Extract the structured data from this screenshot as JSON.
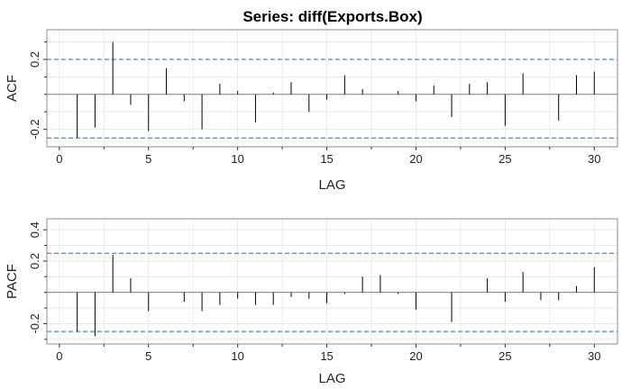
{
  "title": "Series:  diff(Exports.Box)",
  "colors": {
    "panel_border": "#8c8c8c",
    "grid": "#e6e6e6",
    "zero_line": "#7f7f7f",
    "bar": "#000000",
    "ci_line": "#1f6fae"
  },
  "chart_data": [
    {
      "type": "bar",
      "name": "acf",
      "xlabel": "LAG",
      "ylabel": "ACF",
      "xlim": [
        -0.7,
        31.3
      ],
      "ylim": [
        -0.3,
        0.37
      ],
      "xticks": [
        0,
        5,
        10,
        15,
        20,
        25,
        30
      ],
      "xtick_labels": [
        "0",
        "5",
        "10",
        "15",
        "20",
        "25",
        "30"
      ],
      "yticks": [
        -0.2,
        0.2
      ],
      "ytick_labels": [
        "-0.2",
        "0.2"
      ],
      "grid": true,
      "ci": [
        -0.25,
        0.2
      ],
      "x": [
        1,
        2,
        3,
        4,
        5,
        6,
        7,
        8,
        9,
        10,
        11,
        12,
        13,
        14,
        15,
        16,
        17,
        18,
        19,
        20,
        21,
        22,
        23,
        24,
        25,
        26,
        27,
        28,
        29,
        30
      ],
      "values": [
        -0.25,
        -0.19,
        0.3,
        -0.06,
        -0.21,
        0.15,
        -0.04,
        -0.2,
        0.06,
        0.02,
        -0.16,
        0.01,
        0.07,
        -0.1,
        -0.03,
        0.11,
        0.03,
        0.0,
        0.02,
        -0.04,
        0.05,
        -0.13,
        0.06,
        0.07,
        -0.18,
        0.12,
        0.0,
        -0.15,
        0.11,
        0.13
      ]
    },
    {
      "type": "bar",
      "name": "pacf",
      "xlabel": "LAG",
      "ylabel": "PACF",
      "xlim": [
        -0.7,
        31.3
      ],
      "ylim": [
        -0.33,
        0.47
      ],
      "xticks": [
        0,
        5,
        10,
        15,
        20,
        25,
        30
      ],
      "xtick_labels": [
        "0",
        "5",
        "10",
        "15",
        "20",
        "25",
        "30"
      ],
      "yticks": [
        -0.2,
        0.2,
        0.4
      ],
      "ytick_labels": [
        "-0.2",
        "0.2",
        "0.4"
      ],
      "grid": true,
      "ci": [
        -0.25,
        0.25
      ],
      "x": [
        1,
        2,
        3,
        4,
        5,
        6,
        7,
        8,
        9,
        10,
        11,
        12,
        13,
        14,
        15,
        16,
        17,
        18,
        19,
        20,
        21,
        22,
        23,
        24,
        25,
        26,
        27,
        28,
        29,
        30
      ],
      "values": [
        -0.25,
        -0.28,
        0.24,
        0.09,
        -0.12,
        0.0,
        -0.06,
        -0.12,
        -0.08,
        -0.04,
        -0.08,
        -0.08,
        -0.03,
        -0.04,
        -0.07,
        -0.01,
        0.1,
        0.11,
        -0.01,
        -0.11,
        0.0,
        -0.19,
        0.0,
        0.09,
        -0.06,
        0.13,
        -0.05,
        -0.05,
        0.04,
        0.16
      ]
    }
  ]
}
